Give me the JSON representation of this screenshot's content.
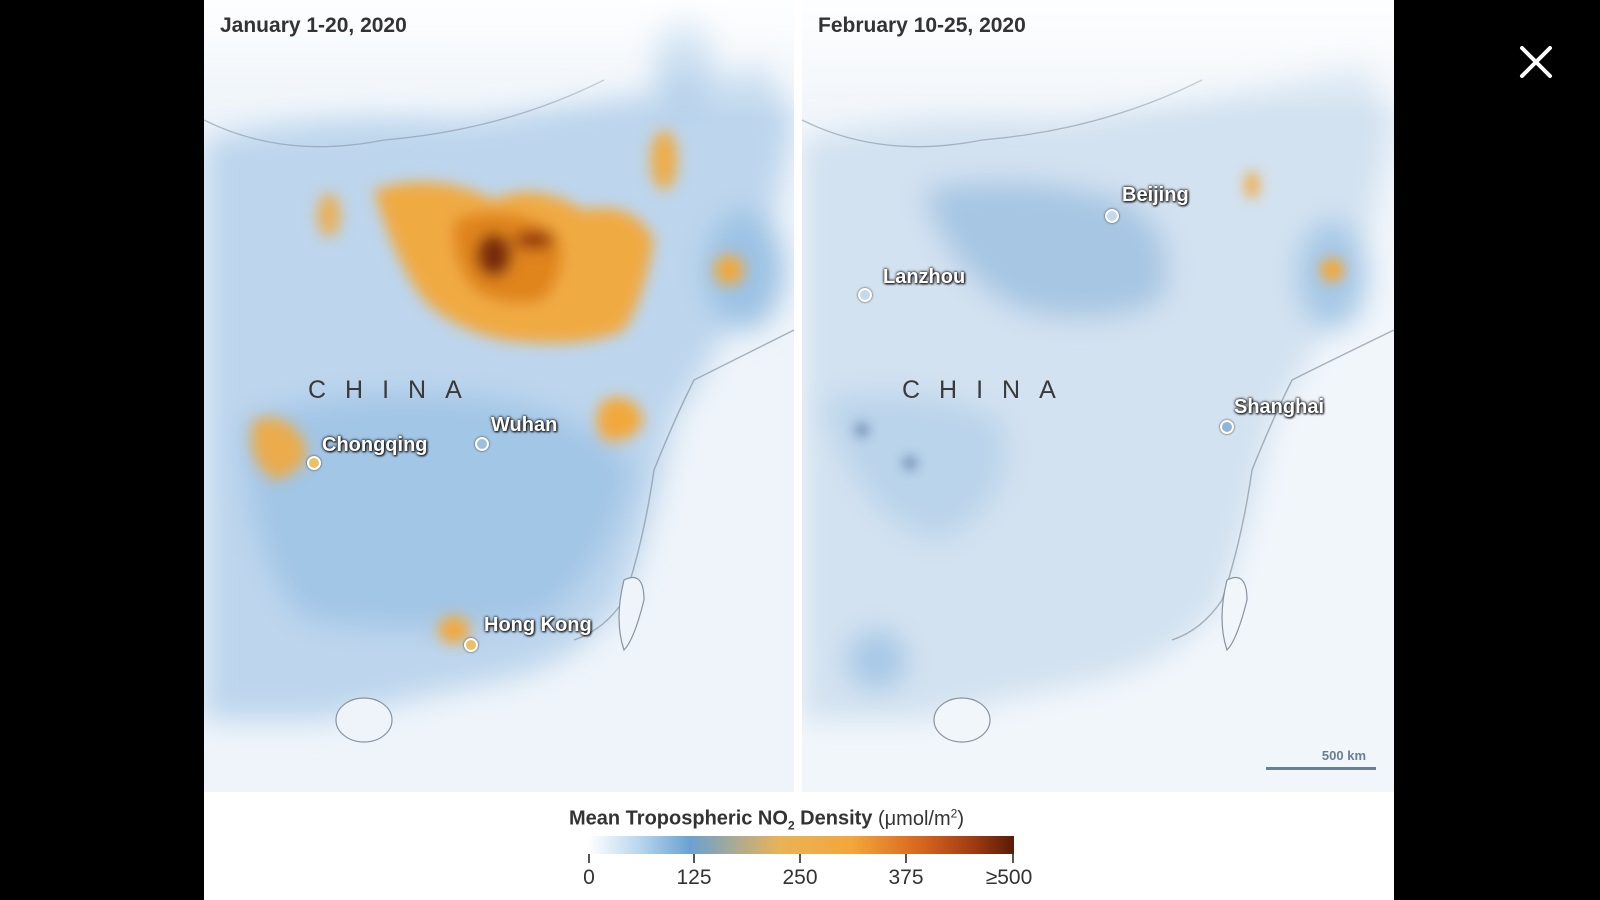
{
  "panels": [
    {
      "title": "January 1-20, 2020",
      "country": "CHINA",
      "cities": [
        {
          "name": "Chongqing"
        },
        {
          "name": "Wuhan"
        },
        {
          "name": "Hong Kong"
        }
      ]
    },
    {
      "title": "February 10-25, 2020",
      "country": "CHINA",
      "cities": [
        {
          "name": "Beijing"
        },
        {
          "name": "Lanzhou"
        },
        {
          "name": "Shanghai"
        }
      ],
      "scale_label": "500 km"
    }
  ],
  "legend": {
    "title_prefix": "Mean Tropospheric NO",
    "title_sub": "2",
    "title_suffix": " Density",
    "unit_prefix": "(μmol/m",
    "unit_sup": "2",
    "unit_suffix": ")",
    "ticks": [
      "0",
      "125",
      "250",
      "375",
      "≥500"
    ]
  },
  "colors": {
    "background": "#000000",
    "map_water": "#f2f6fb",
    "low": "#6aa2d0",
    "mid": "#f3a63b",
    "high": "#5a1b06"
  },
  "close_icon": "close-icon"
}
